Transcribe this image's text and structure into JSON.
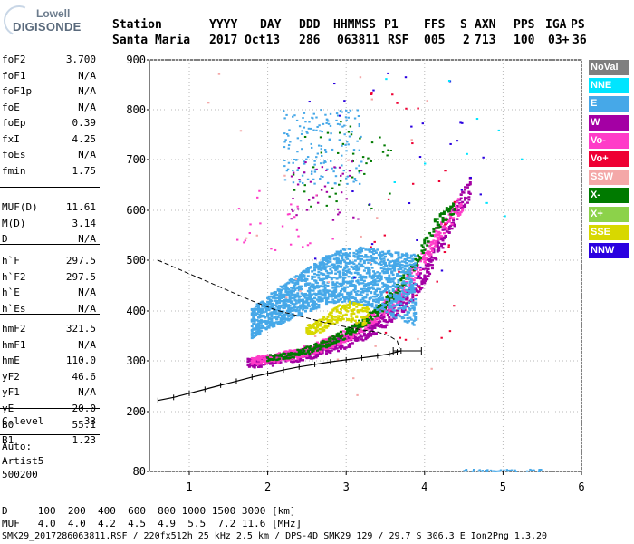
{
  "logo": {
    "line1": "Lowell",
    "line2": "DIGISONDE"
  },
  "header": {
    "labels": [
      "Station",
      "YYYY",
      "DAY",
      "DDD",
      "HHMMSS",
      "P1",
      "FFS",
      "S",
      "AXN",
      "PPS",
      "IGA",
      "PS"
    ],
    "values": [
      "Santa Maria",
      "2017",
      "Oct13",
      "286",
      "063811",
      "RSF",
      "005",
      "2",
      "713",
      "100",
      "03+",
      "36"
    ]
  },
  "params": [
    {
      "k": "foF2",
      "v": "3.700"
    },
    {
      "k": "foF1",
      "v": "N/A"
    },
    {
      "k": "foF1p",
      "v": "N/A"
    },
    {
      "k": "foE",
      "v": "N/A"
    },
    {
      "k": "foEp",
      "v": "0.39"
    },
    {
      "k": "fxI",
      "v": "4.25"
    },
    {
      "k": "foEs",
      "v": "N/A"
    },
    {
      "k": "fmin",
      "v": "1.75"
    },
    {
      "k": "MUF(D)",
      "v": "11.61"
    },
    {
      "k": "M(D)",
      "v": "3.14"
    },
    {
      "k": "D",
      "v": "N/A"
    },
    {
      "k": "h`F",
      "v": "297.5"
    },
    {
      "k": "h`F2",
      "v": "297.5"
    },
    {
      "k": "h`E",
      "v": "N/A"
    },
    {
      "k": "h`Es",
      "v": "N/A"
    },
    {
      "k": "hmF2",
      "v": "321.5"
    },
    {
      "k": "hmF1",
      "v": "N/A"
    },
    {
      "k": "hmE",
      "v": "110.0"
    },
    {
      "k": "yF2",
      "v": "46.6"
    },
    {
      "k": "yF1",
      "v": "N/A"
    },
    {
      "k": "yE",
      "v": "20.0"
    },
    {
      "k": "B0",
      "v": "55.1"
    },
    {
      "k": "B1",
      "v": "1.23"
    },
    {
      "k": "C-level",
      "v": "33"
    }
  ],
  "auto": {
    "line1": "Auto:",
    "line2": "Artist5",
    "line3": "500200"
  },
  "legend": [
    {
      "label": "NoVal",
      "color": "#7f7f7f",
      "text": "#ffffff"
    },
    {
      "label": "NNE",
      "color": "#00e5ff",
      "text": "#ffffff"
    },
    {
      "label": "E",
      "color": "#46a8e8",
      "text": "#ffffff"
    },
    {
      "label": "W",
      "color": "#a400a4",
      "text": "#ffffff"
    },
    {
      "label": "Vo-",
      "color": "#ff3cc8",
      "text": "#ffffff"
    },
    {
      "label": "Vo+",
      "color": "#ee0033",
      "text": "#ffffff"
    },
    {
      "label": "SSW",
      "color": "#f4a8a8",
      "text": "#ffffff"
    },
    {
      "label": "X-",
      "color": "#007a00",
      "text": "#ffffff"
    },
    {
      "label": "X+",
      "color": "#8cd24a",
      "text": "#ffffff"
    },
    {
      "label": "SSE",
      "color": "#d8d800",
      "text": "#ffffff"
    },
    {
      "label": "NNW",
      "color": "#2a00e0",
      "text": "#ffffff"
    }
  ],
  "bottom": {
    "d_row": "D     100  200  400  600  800 1000 1500 3000 [km]",
    "muf_row": "MUF   4.0  4.0  4.2  4.5  4.9  5.5  7.2 11.6 [MHz]",
    "footer": "SMK29_2017286063811.RSF / 220fx512h 25 kHz 2.5 km / DPS-4D SMK29 129 / 29.7 S 306.3 E Ion2Png 1.3.20"
  },
  "chart_data": {
    "type": "scatter",
    "xlim": [
      0.6,
      6.0
    ],
    "ylim": [
      80,
      900
    ],
    "xticks": [
      1,
      2,
      3,
      4,
      5,
      6
    ],
    "yticks": [
      80,
      200,
      300,
      400,
      500,
      600,
      700,
      800,
      900
    ],
    "grid": true,
    "dashed_profile": {
      "x": [
        0.6,
        0.9,
        1.2,
        1.5,
        1.8,
        2.1,
        2.4,
        2.7,
        3.0,
        3.2,
        3.4,
        3.55,
        3.65,
        3.68
      ],
      "y": [
        500,
        480,
        460,
        440,
        420,
        402,
        390,
        378,
        368,
        362,
        358,
        350,
        340,
        325
      ]
    },
    "trace_curve": {
      "x": [
        0.6,
        0.8,
        1.0,
        1.2,
        1.4,
        1.6,
        1.8,
        2.0,
        2.2,
        2.4,
        2.6,
        2.8,
        3.0,
        3.2,
        3.4,
        3.55,
        3.65,
        3.7
      ],
      "y": [
        222,
        228,
        236,
        244,
        252,
        260,
        268,
        275,
        282,
        288,
        293,
        298,
        302,
        306,
        310,
        314,
        318,
        320
      ]
    },
    "error_bar": {
      "y": 320,
      "x_from": 3.6,
      "x_to": 3.96
    },
    "echo_bands": [
      {
        "series": "W",
        "x_from": 1.75,
        "x_to": 4.6,
        "base_y": 295,
        "curve": [
          295,
          300,
          310,
          322,
          340,
          365,
          400,
          460,
          560,
          650
        ],
        "thickness": 18
      },
      {
        "series": "Vo-",
        "x_from": 1.8,
        "x_to": 4.5,
        "base_y": 300,
        "curve": [
          300,
          305,
          315,
          330,
          350,
          380,
          420,
          480,
          560,
          620
        ],
        "thickness": 16
      },
      {
        "series": "X-",
        "x_from": 2.0,
        "x_to": 4.4,
        "base_y": 305,
        "curve": [
          305,
          310,
          322,
          338,
          360,
          390,
          430,
          490,
          570,
          610
        ],
        "thickness": 12
      },
      {
        "series": "E",
        "x_from": 1.8,
        "x_to": 3.9,
        "base_y": 375,
        "curve": [
          375,
          400,
          420,
          440,
          460,
          470,
          470,
          460,
          450,
          440
        ],
        "thickness": 60
      },
      {
        "series": "SSE",
        "x_from": 2.5,
        "x_to": 3.3,
        "base_y": 360,
        "curve": [
          360,
          365,
          370,
          380,
          390,
          400,
          400,
          395,
          390,
          385
        ],
        "thickness": 20
      }
    ],
    "scatter_groups": [
      {
        "series": "E",
        "x_from": 2.2,
        "x_to": 3.2,
        "y_from": 650,
        "y_to": 800,
        "count": 160
      },
      {
        "series": "X-",
        "x_from": 2.3,
        "x_to": 3.6,
        "y_from": 600,
        "y_to": 780,
        "count": 45
      },
      {
        "series": "W",
        "x_from": 2.3,
        "x_to": 3.2,
        "y_from": 580,
        "y_to": 700,
        "count": 40
      },
      {
        "series": "Vo-",
        "x_from": 1.6,
        "x_to": 3.0,
        "y_from": 520,
        "y_to": 640,
        "count": 25
      },
      {
        "series": "NNW",
        "x_from": 2.5,
        "x_to": 4.8,
        "y_from": 400,
        "y_to": 880,
        "count": 30
      },
      {
        "series": "SSW",
        "x_from": 1.2,
        "x_to": 4.3,
        "y_from": 200,
        "y_to": 880,
        "count": 25
      },
      {
        "series": "NNE",
        "x_from": 3.4,
        "x_to": 5.3,
        "y_from": 400,
        "y_to": 900,
        "count": 10
      },
      {
        "series": "Vo+",
        "x_from": 3.3,
        "x_to": 4.4,
        "y_from": 300,
        "y_to": 880,
        "count": 30
      },
      {
        "series": "E",
        "x_from": 4.5,
        "x_to": 5.5,
        "y_from": 80,
        "y_to": 84,
        "count": 40
      }
    ]
  }
}
